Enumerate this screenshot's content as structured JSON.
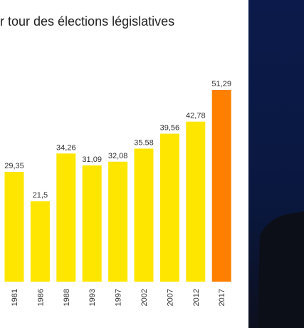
{
  "chart_data": {
    "type": "bar",
    "title": "r tour des élections législatives",
    "categories": [
      "1981",
      "1986",
      "1988",
      "1993",
      "1997",
      "2002",
      "2007",
      "2012",
      "2017"
    ],
    "values": [
      29.35,
      21.5,
      34.26,
      31.09,
      32.08,
      35.58,
      39.56,
      42.78,
      51.29
    ],
    "value_labels": [
      "29,35",
      "21,5",
      "34,26",
      "31,09",
      "32,08",
      "35.58",
      "39,56",
      "42,78",
      "51,29"
    ],
    "colors": [
      "#ffe600",
      "#ffe600",
      "#ffe600",
      "#ffe600",
      "#ffe600",
      "#ffe600",
      "#ffe600",
      "#ffe600",
      "#ff8000"
    ]
  }
}
